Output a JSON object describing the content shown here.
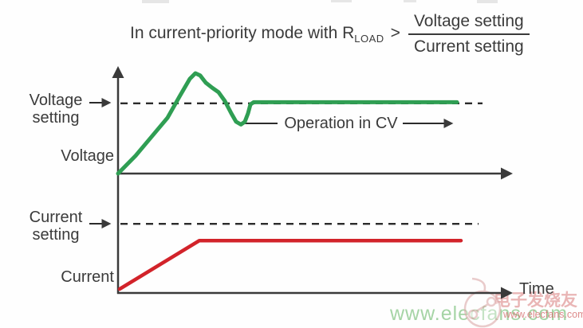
{
  "title": {
    "prefix": "In current-priority mode with R",
    "subscript": "LOAD",
    "operator": ">",
    "fraction": {
      "numerator": "Voltage setting",
      "denominator": "Current setting"
    }
  },
  "labels": {
    "voltage_setting": [
      "Voltage",
      "setting"
    ],
    "voltage_axis": "Voltage",
    "current_setting": [
      "Current",
      "setting"
    ],
    "current_axis": "Current",
    "cv_annotation": "Operation in CV",
    "time_axis": "Time"
  },
  "watermark": {
    "site_name_cn": "电子发烧友",
    "url_small": "www.elecfans.com",
    "url_large": "www.elecfans.com"
  },
  "colors": {
    "voltage_curve": "#2f9e53",
    "current_curve": "#d2232a",
    "axis": "#3a3a3a",
    "text": "#3b3b3b",
    "watermark_green": "#8fca8f",
    "watermark_red": "#d56f6f"
  },
  "chart_data": {
    "type": "line",
    "title": "In current-priority mode with R_LOAD > Voltage setting / Current setting",
    "xlabel": "Time",
    "axis_ticks": "none (conceptual plot, values normalized 0-100)",
    "xlim": [
      0,
      100
    ],
    "ylim": [
      0,
      100
    ],
    "legend": "none",
    "grid": false,
    "panels": [
      {
        "name": "voltage-vs-time",
        "ylabel": "Voltage",
        "reference_line": {
          "label": "Voltage setting",
          "level": 63,
          "style": "dashed"
        },
        "annotation": "Operation in CV",
        "series": [
          {
            "name": "Voltage",
            "color": "#2f9e53",
            "points": [
              [
                0,
                0
              ],
              [
                4.4,
                16
              ],
              [
                8.4,
                33
              ],
              [
                12.4,
                50
              ],
              [
                15.4,
                69
              ],
              [
                18,
                85
              ],
              [
                19.4,
                90
              ],
              [
                20.6,
                88
              ],
              [
                22,
                81.5
              ],
              [
                23.6,
                77
              ],
              [
                25.2,
                73
              ],
              [
                26.8,
                65
              ],
              [
                28.4,
                54
              ],
              [
                29.6,
                46.5
              ],
              [
                30.8,
                44
              ],
              [
                31.8,
                46.5
              ],
              [
                32.6,
                54
              ],
              [
                33.2,
                62
              ],
              [
                34,
                64
              ],
              [
                38,
                64
              ],
              [
                85,
                64
              ]
            ]
          }
        ]
      },
      {
        "name": "current-vs-time",
        "ylabel": "Current",
        "reference_line": {
          "label": "Current setting",
          "level": 62,
          "style": "dashed"
        },
        "series": [
          {
            "name": "Current",
            "color": "#d2232a",
            "points": [
              [
                0.4,
                3.5
              ],
              [
                20.4,
                47
              ],
              [
                86,
                47
              ]
            ]
          }
        ]
      }
    ]
  }
}
